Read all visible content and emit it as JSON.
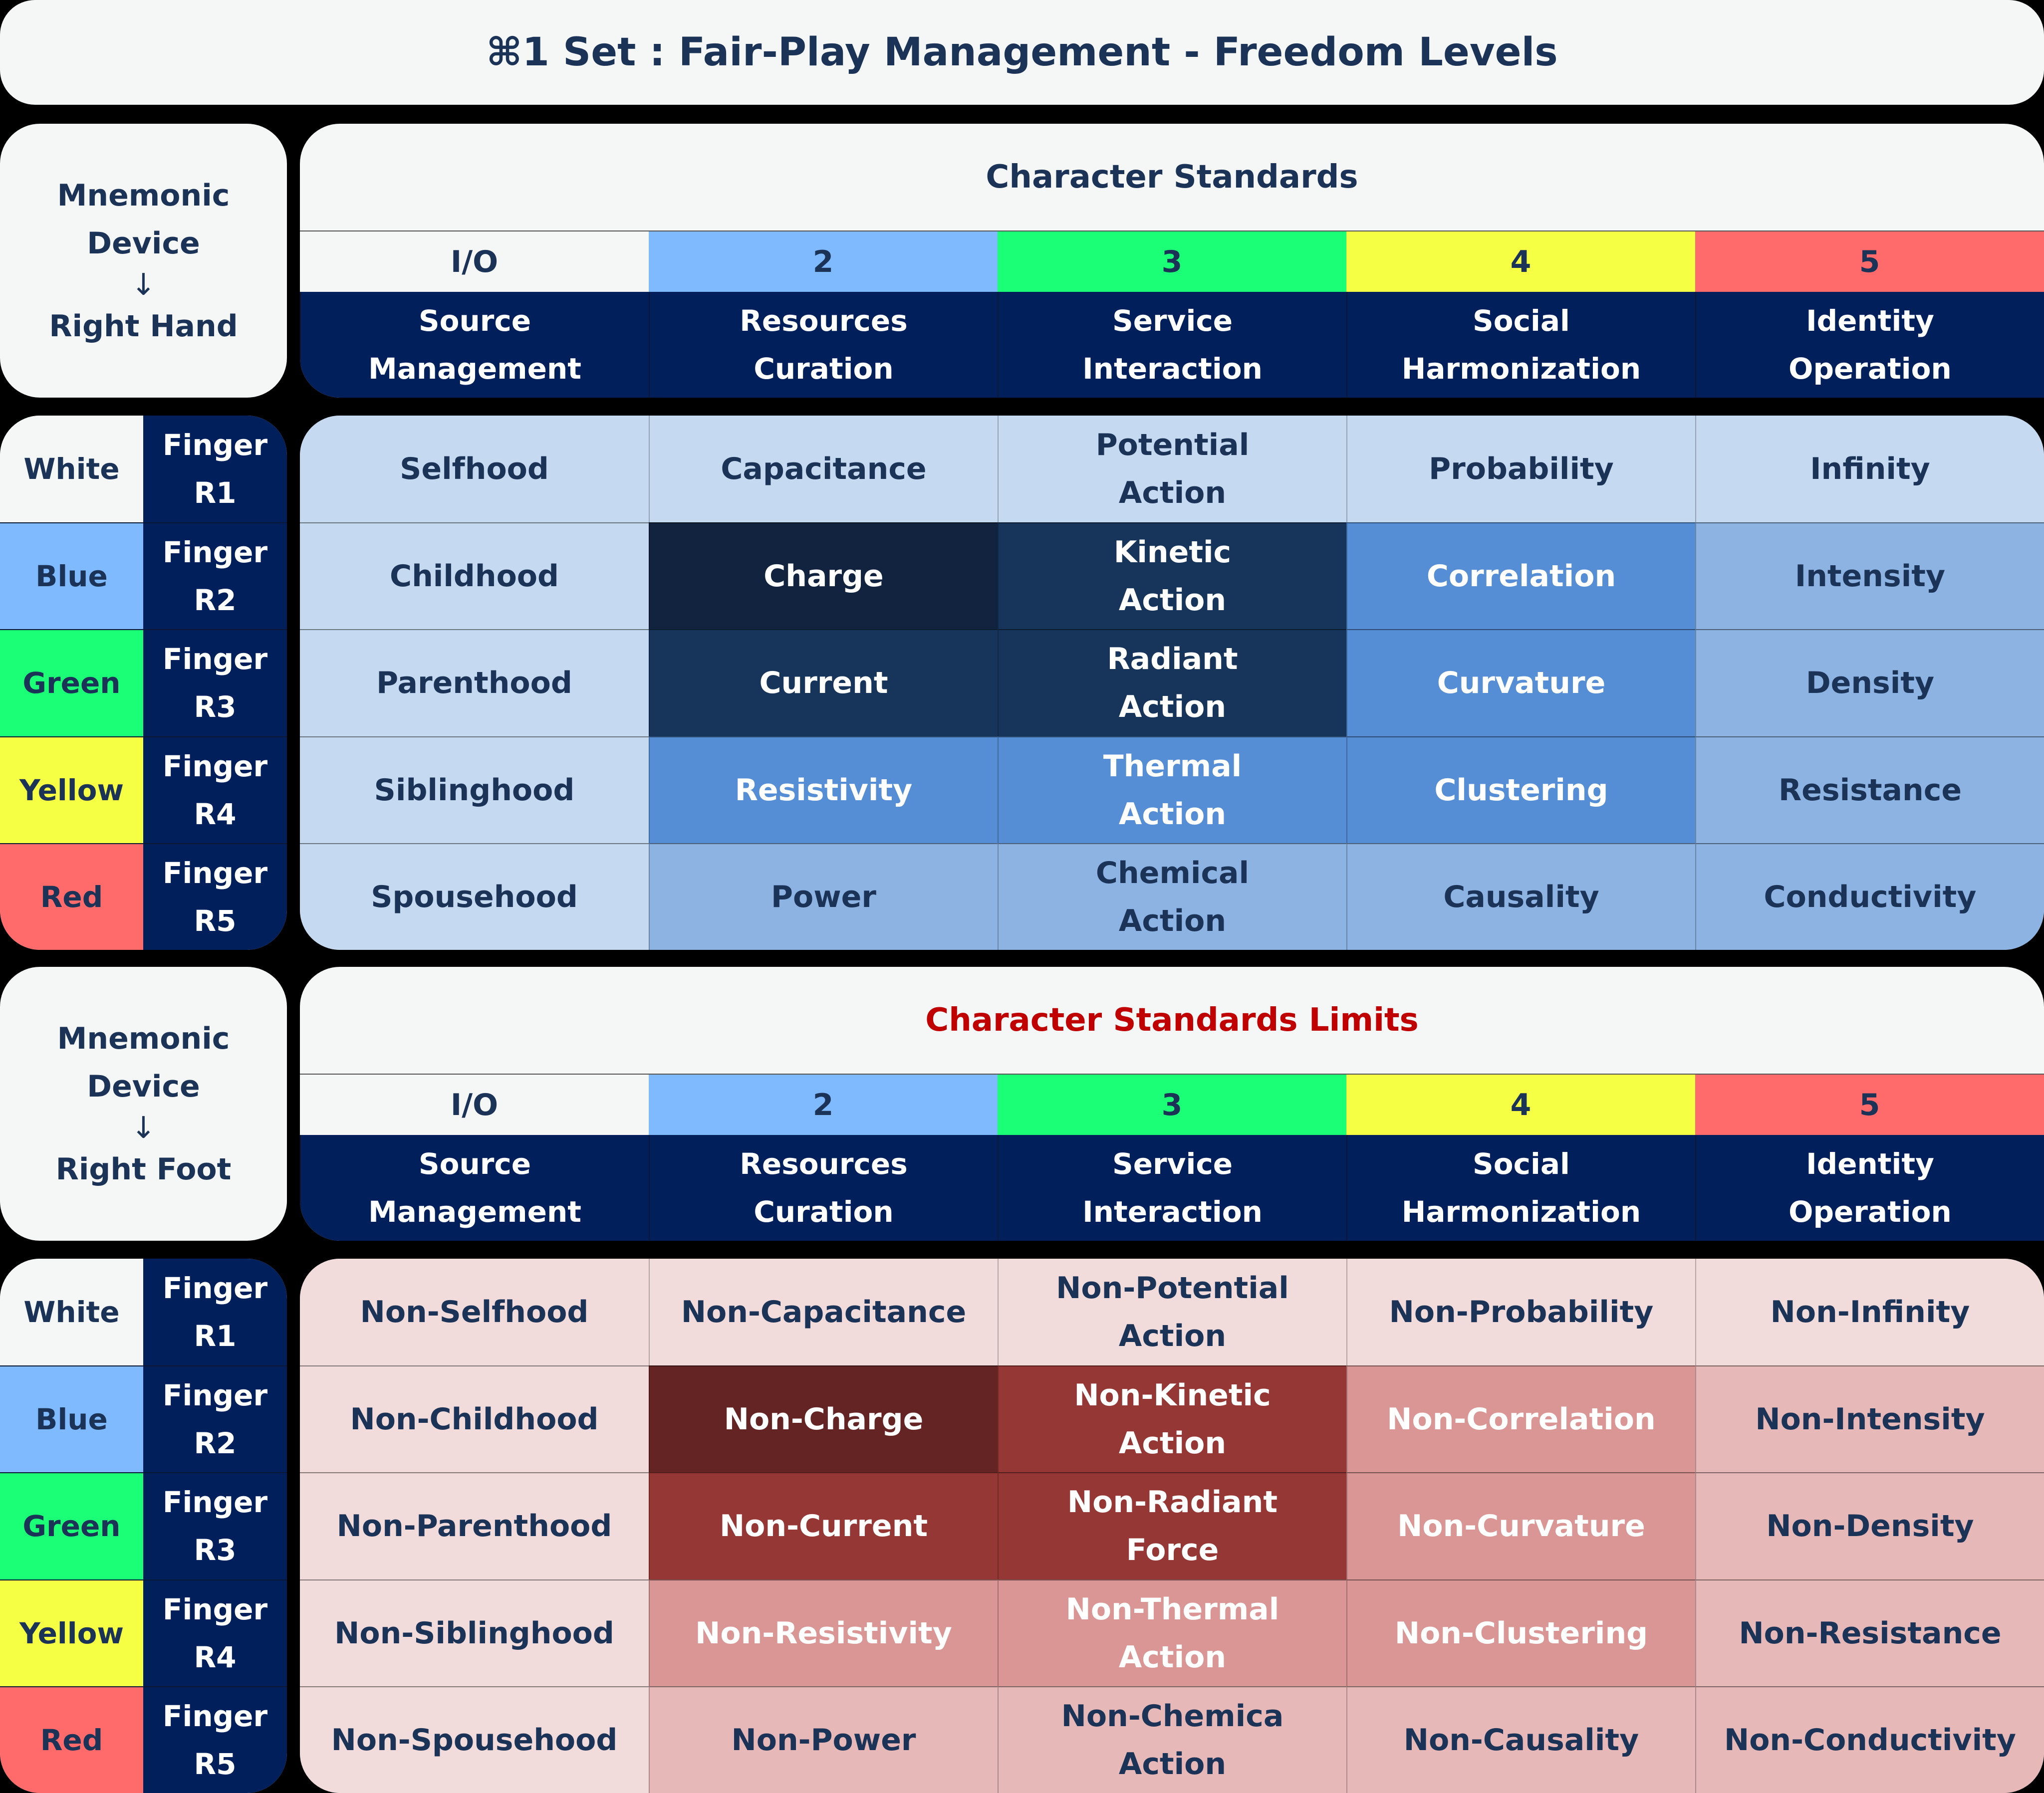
{
  "title": "⌘1 Set : Fair-Play Management - Freedom Levels",
  "colors": {
    "white": "#f5f7f7",
    "blue": "#7fbaff",
    "green": "#1aff76",
    "yellow": "#f5ff44",
    "red": "#ff6b6b",
    "navy": "#011f5b",
    "limits_title": "#c00000"
  },
  "sections": [
    {
      "mnemonic": {
        "line1": "Mnemonic",
        "line2": "Device",
        "arrow": "↓",
        "line3": "Right Hand"
      },
      "header_title": "Character Standards",
      "header_title_color": "#1b3357",
      "numbers": [
        "I/O",
        "2",
        "3",
        "4",
        "5"
      ],
      "categories": [
        "Source\nManagement",
        "Resources\nCuration",
        "Service\nInteraction",
        "Social\nHarmonization",
        "Identity\nOperation"
      ],
      "shades": {
        "light": "#c5d9f1",
        "darkest": "#12233f",
        "dark": "#17345a",
        "mid": "#558ed5",
        "lightmid": "#8db3e2"
      },
      "rows": [
        {
          "color": "White",
          "finger": "Finger\nR1",
          "cells": [
            [
              "Selfhood",
              "light"
            ],
            [
              "Capacitance",
              "light"
            ],
            [
              "Potential\nAction",
              "light"
            ],
            [
              "Probability",
              "light"
            ],
            [
              "Infinity",
              "light"
            ]
          ]
        },
        {
          "color": "Blue",
          "finger": "Finger\nR2",
          "cells": [
            [
              "Childhood",
              "light"
            ],
            [
              "Charge",
              "darkest"
            ],
            [
              "Kinetic\nAction",
              "dark"
            ],
            [
              "Correlation",
              "mid"
            ],
            [
              "Intensity",
              "lightmid"
            ]
          ]
        },
        {
          "color": "Green",
          "finger": "Finger\nR3",
          "cells": [
            [
              "Parenthood",
              "light"
            ],
            [
              "Current",
              "dark"
            ],
            [
              "Radiant\nAction",
              "dark"
            ],
            [
              "Curvature",
              "mid"
            ],
            [
              "Density",
              "lightmid"
            ]
          ]
        },
        {
          "color": "Yellow",
          "finger": "Finger\nR4",
          "cells": [
            [
              "Siblinghood",
              "light"
            ],
            [
              "Resistivity",
              "mid"
            ],
            [
              "Thermal\nAction",
              "mid"
            ],
            [
              "Clustering",
              "mid"
            ],
            [
              "Resistance",
              "lightmid"
            ]
          ]
        },
        {
          "color": "Red",
          "finger": "Finger\nR5",
          "cells": [
            [
              "Spousehood",
              "light"
            ],
            [
              "Power",
              "lightmid"
            ],
            [
              "Chemical\nAction",
              "lightmid"
            ],
            [
              "Causality",
              "lightmid"
            ],
            [
              "Conductivity",
              "lightmid"
            ]
          ]
        }
      ]
    },
    {
      "mnemonic": {
        "line1": "Mnemonic",
        "line2": "Device",
        "arrow": "↓",
        "line3": "Right Foot"
      },
      "header_title": "Character Standards Limits",
      "header_title_color": "#c00000",
      "numbers": [
        "I/O",
        "2",
        "3",
        "4",
        "5"
      ],
      "categories": [
        "Source\nManagement",
        "Resources\nCuration",
        "Service\nInteraction",
        "Social\nHarmonization",
        "Identity\nOperation"
      ],
      "shades": {
        "light": "#f2dcdb",
        "darkest": "#632423",
        "dark": "#953735",
        "mid": "#d99694",
        "lightmid": "#e6b9b8"
      },
      "rows": [
        {
          "color": "White",
          "finger": "Finger\nR1",
          "cells": [
            [
              "Non-Selfhood",
              "light"
            ],
            [
              "Non-Capacitance",
              "light"
            ],
            [
              "Non-Potential\nAction",
              "light"
            ],
            [
              "Non-Probability",
              "light"
            ],
            [
              "Non-Infinity",
              "light"
            ]
          ]
        },
        {
          "color": "Blue",
          "finger": "Finger\nR2",
          "cells": [
            [
              "Non-Childhood",
              "light"
            ],
            [
              "Non-Charge",
              "darkest"
            ],
            [
              "Non-Kinetic\nAction",
              "dark"
            ],
            [
              "Non-Correlation",
              "mid"
            ],
            [
              "Non-Intensity",
              "lightmid"
            ]
          ]
        },
        {
          "color": "Green",
          "finger": "Finger\nR3",
          "cells": [
            [
              "Non-Parenthood",
              "light"
            ],
            [
              "Non-Current",
              "dark"
            ],
            [
              "Non-Radiant\nForce",
              "dark"
            ],
            [
              "Non-Curvature",
              "mid"
            ],
            [
              "Non-Density",
              "lightmid"
            ]
          ]
        },
        {
          "color": "Yellow",
          "finger": "Finger\nR4",
          "cells": [
            [
              "Non-Siblinghood",
              "light"
            ],
            [
              "Non-Resistivity",
              "mid"
            ],
            [
              "Non-Thermal\nAction",
              "mid"
            ],
            [
              "Non-Clustering",
              "mid"
            ],
            [
              "Non-Resistance",
              "lightmid"
            ]
          ]
        },
        {
          "color": "Red",
          "finger": "Finger\nR5",
          "cells": [
            [
              "Non-Spousehood",
              "light"
            ],
            [
              "Non-Power",
              "lightmid"
            ],
            [
              "Non-Chemica\nAction",
              "lightmid"
            ],
            [
              "Non-Causality",
              "lightmid"
            ],
            [
              "Non-Conductivity",
              "lightmid"
            ]
          ]
        }
      ]
    }
  ]
}
